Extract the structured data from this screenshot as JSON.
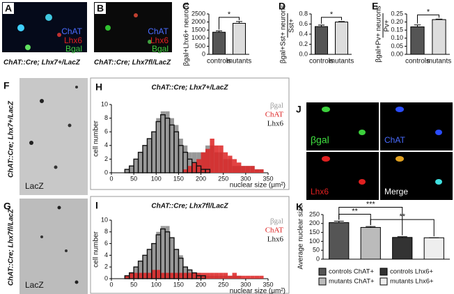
{
  "images": [
    {
      "letter": "A",
      "labels": [
        "ChAT",
        "Lhx6",
        "Bgal"
      ],
      "caption": "ChAT::Cre; Lhx7+/LacZ"
    },
    {
      "letter": "B",
      "labels": [
        "ChAT",
        "Lhx6",
        "Bgal"
      ],
      "caption": "ChAT::Cre; Lhx7fl/LacZ"
    },
    {
      "letter": "F",
      "caption": "ChAT::Cre; Lhx7+/LacZ",
      "label": "LacZ"
    },
    {
      "letter": "G",
      "caption": "ChAT::Cre; Lhx7fl/LacZ",
      "label": "LacZ"
    },
    {
      "letter": "J",
      "labels": [
        "βgal",
        "ChAT",
        "Lhx6",
        "Merge"
      ]
    }
  ],
  "chart_data": [
    {
      "type": "bar",
      "letter": "C",
      "ylabel": "βgal+Lhx6+ neurons",
      "categories": [
        "controls",
        "mutants"
      ],
      "values": [
        1370,
        1920
      ],
      "errors": [
        80,
        110
      ],
      "colors": [
        "#555555",
        "#dddddd"
      ],
      "ylim": [
        0,
        2500
      ],
      "yticks": [
        0,
        500,
        1000,
        1500,
        2000,
        2500
      ],
      "annotations": [
        "*"
      ]
    },
    {
      "type": "bar",
      "letter": "D",
      "ylabel": "βgal+Sst+ neurons",
      "ylabel_denominator": "Sst+",
      "categories": [
        "controls",
        "mutants"
      ],
      "values": [
        0.55,
        0.64
      ],
      "errors": [
        0.03,
        0.01
      ],
      "colors": [
        "#555555",
        "#dddddd"
      ],
      "ylim": [
        0,
        0.8
      ],
      "yticks": [
        {
          "value": 0,
          "label": "0.0"
        },
        0.2,
        0.4,
        0.6,
        0.8
      ],
      "annotations": [
        "*"
      ]
    },
    {
      "type": "bar",
      "letter": "E",
      "ylabel": "βgal+Pv+ neurons",
      "ylabel_denominator": "Pv+",
      "categories": [
        "controls",
        "mutants"
      ],
      "values": [
        0.17,
        0.215
      ],
      "errors": [
        0.012,
        0.003
      ],
      "colors": [
        "#555555",
        "#dddddd"
      ],
      "ylim": [
        0,
        0.25
      ],
      "yticks": [
        {
          "value": 0,
          "label": "0.00"
        },
        {
          "value": 0.05,
          "label": "0.05"
        },
        {
          "value": 0.1,
          "label": "0.10"
        },
        {
          "value": 0.15,
          "label": "0.15"
        },
        {
          "value": 0.2,
          "label": "0.20"
        },
        {
          "value": 0.25,
          "label": "0.25"
        }
      ],
      "annotations": [
        "*"
      ]
    },
    {
      "type": "histogram",
      "letter": "H",
      "title": "ChAT::Cre; Lhx7+/LacZ",
      "xlabel": "nuclear size (μm²)",
      "ylabel": "cell number",
      "xlim": [
        0,
        350
      ],
      "xticks": [
        0,
        50,
        100,
        150,
        200,
        250,
        300,
        350
      ],
      "ylim": [
        0,
        10
      ],
      "yticks": [
        0,
        2,
        4,
        6,
        8,
        10
      ],
      "bins": [
        30,
        40,
        50,
        60,
        70,
        80,
        90,
        100,
        110,
        120,
        130,
        140,
        150,
        160,
        170,
        180,
        190,
        200,
        210,
        220,
        230,
        240,
        250,
        260,
        270,
        280,
        290,
        300,
        310,
        320,
        330,
        340,
        350
      ],
      "series": [
        {
          "name": "βgal",
          "color": "#999999",
          "filled": true,
          "values": [
            0.5,
            1,
            2,
            3,
            4,
            5,
            6,
            8,
            9,
            9,
            8,
            7,
            5,
            4,
            3,
            3,
            3,
            3,
            4,
            4,
            3,
            3,
            2,
            2,
            1,
            1,
            1,
            1,
            1,
            0.5,
            0.5,
            0
          ]
        },
        {
          "name": "ChAT",
          "color": "#dd2222",
          "filled": true,
          "values": [
            0,
            0,
            0,
            0,
            0,
            0,
            0,
            0,
            0,
            0,
            0,
            0,
            0,
            0.5,
            1,
            1.5,
            2,
            3,
            3.5,
            5,
            4,
            4,
            3,
            2.5,
            2,
            1.5,
            1,
            1,
            1,
            0.5,
            0.5,
            0
          ]
        },
        {
          "name": "Lhx6",
          "color": "#111111",
          "filled": false,
          "values": [
            0.5,
            1,
            2,
            3,
            4,
            5,
            6,
            7.5,
            8.5,
            8,
            7,
            6,
            4,
            3,
            2,
            1.5,
            1,
            0.5,
            0.5,
            0,
            0,
            0,
            0,
            0,
            0,
            0,
            0,
            0,
            0,
            0,
            0,
            0
          ]
        }
      ]
    },
    {
      "type": "histogram",
      "letter": "I",
      "title": "ChAT::Cre; Lhx7fl/LacZ",
      "xlabel": "nuclear size (μm²)",
      "ylabel": "cell number",
      "xlim": [
        0,
        350
      ],
      "xticks": [
        0,
        50,
        100,
        150,
        200,
        250,
        300,
        350
      ],
      "ylim": [
        0,
        10
      ],
      "yticks": [
        0,
        2,
        4,
        6,
        8,
        10
      ],
      "bins": [
        30,
        40,
        50,
        60,
        70,
        80,
        90,
        100,
        110,
        120,
        130,
        140,
        150,
        160,
        170,
        180,
        190,
        200,
        210,
        220,
        230,
        240,
        250,
        260,
        270,
        280,
        290,
        300,
        310,
        320,
        330,
        340,
        350
      ],
      "series": [
        {
          "name": "βgal",
          "color": "#999999",
          "filled": true,
          "values": [
            0.5,
            1,
            2,
            3,
            4,
            5,
            6,
            8,
            9,
            9,
            7,
            5,
            4,
            2,
            1.5,
            1,
            1,
            0.5,
            0.5,
            0.5,
            0.5,
            0.5,
            0.5,
            0.5,
            0.5,
            0.5,
            0,
            0,
            0,
            0,
            0,
            0
          ]
        },
        {
          "name": "ChAT",
          "color": "#dd2222",
          "filled": true,
          "values": [
            0.5,
            1,
            1,
            1,
            1,
            1,
            1.5,
            1.5,
            1,
            1,
            1,
            1,
            1,
            1,
            1,
            1,
            1,
            1,
            1,
            1,
            1,
            1,
            1,
            0.5,
            1,
            0.5,
            0.5,
            0.5,
            0.5,
            0.5,
            0.5,
            0
          ]
        },
        {
          "name": "Lhx6",
          "color": "#111111",
          "filled": false,
          "values": [
            0.5,
            1,
            2,
            3,
            4,
            5,
            6,
            7.5,
            8.5,
            8,
            7,
            5,
            3.5,
            2,
            1.5,
            1,
            0.5,
            0.5,
            0,
            0,
            0,
            0,
            0,
            0,
            0,
            0,
            0,
            0,
            0,
            0,
            0,
            0
          ]
        }
      ]
    },
    {
      "type": "bar",
      "letter": "K",
      "ylabel": "Average nuclear size",
      "legend": true,
      "categories": [
        "controls ChAT+",
        "mutants ChAT+",
        "controls Lhx6+",
        "mutants Lhx6+"
      ],
      "values": [
        205,
        178,
        122,
        120
      ],
      "errors": [
        8,
        5,
        4,
        0
      ],
      "colors": [
        "#555555",
        "#bbbbbb",
        "#333333",
        "#eeeeee"
      ],
      "ylim": [
        0,
        250
      ],
      "yticks": [
        0,
        50,
        100,
        150,
        200,
        250
      ],
      "annotations": [
        "***",
        "**",
        "**"
      ]
    }
  ]
}
